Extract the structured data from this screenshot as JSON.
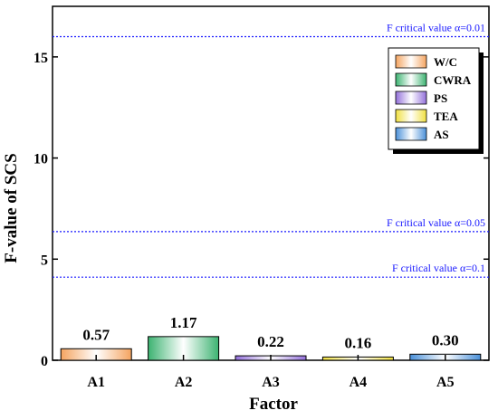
{
  "chart_data": {
    "type": "bar",
    "title": "",
    "xlabel": "Factor",
    "ylabel": "F-value of SCS",
    "ylim": [
      0,
      17.5
    ],
    "yticks": [
      0,
      5,
      10,
      15
    ],
    "categories": [
      "A1",
      "A2",
      "A3",
      "A4",
      "A5"
    ],
    "values": [
      0.57,
      1.17,
      0.22,
      0.16,
      0.3
    ],
    "value_labels": [
      "0.57",
      "1.17",
      "0.22",
      "0.16",
      "0.30"
    ],
    "legend": {
      "placement": "top-right",
      "entries": [
        "W/C",
        "CWRA",
        "PS",
        "TEA",
        "AS"
      ]
    },
    "bar_colors": [
      "#f4a460",
      "#3cb371",
      "#9370db",
      "#f0e040",
      "#4a90d9"
    ],
    "reference_lines": [
      {
        "label": "F critical value α=0.01",
        "value": 16.0
      },
      {
        "label": "F critical value α=0.05",
        "value": 6.36
      },
      {
        "label": "F critical value α=0.1",
        "value": 4.11
      }
    ],
    "reference_line_color": "#1a1aff",
    "grid": false
  }
}
